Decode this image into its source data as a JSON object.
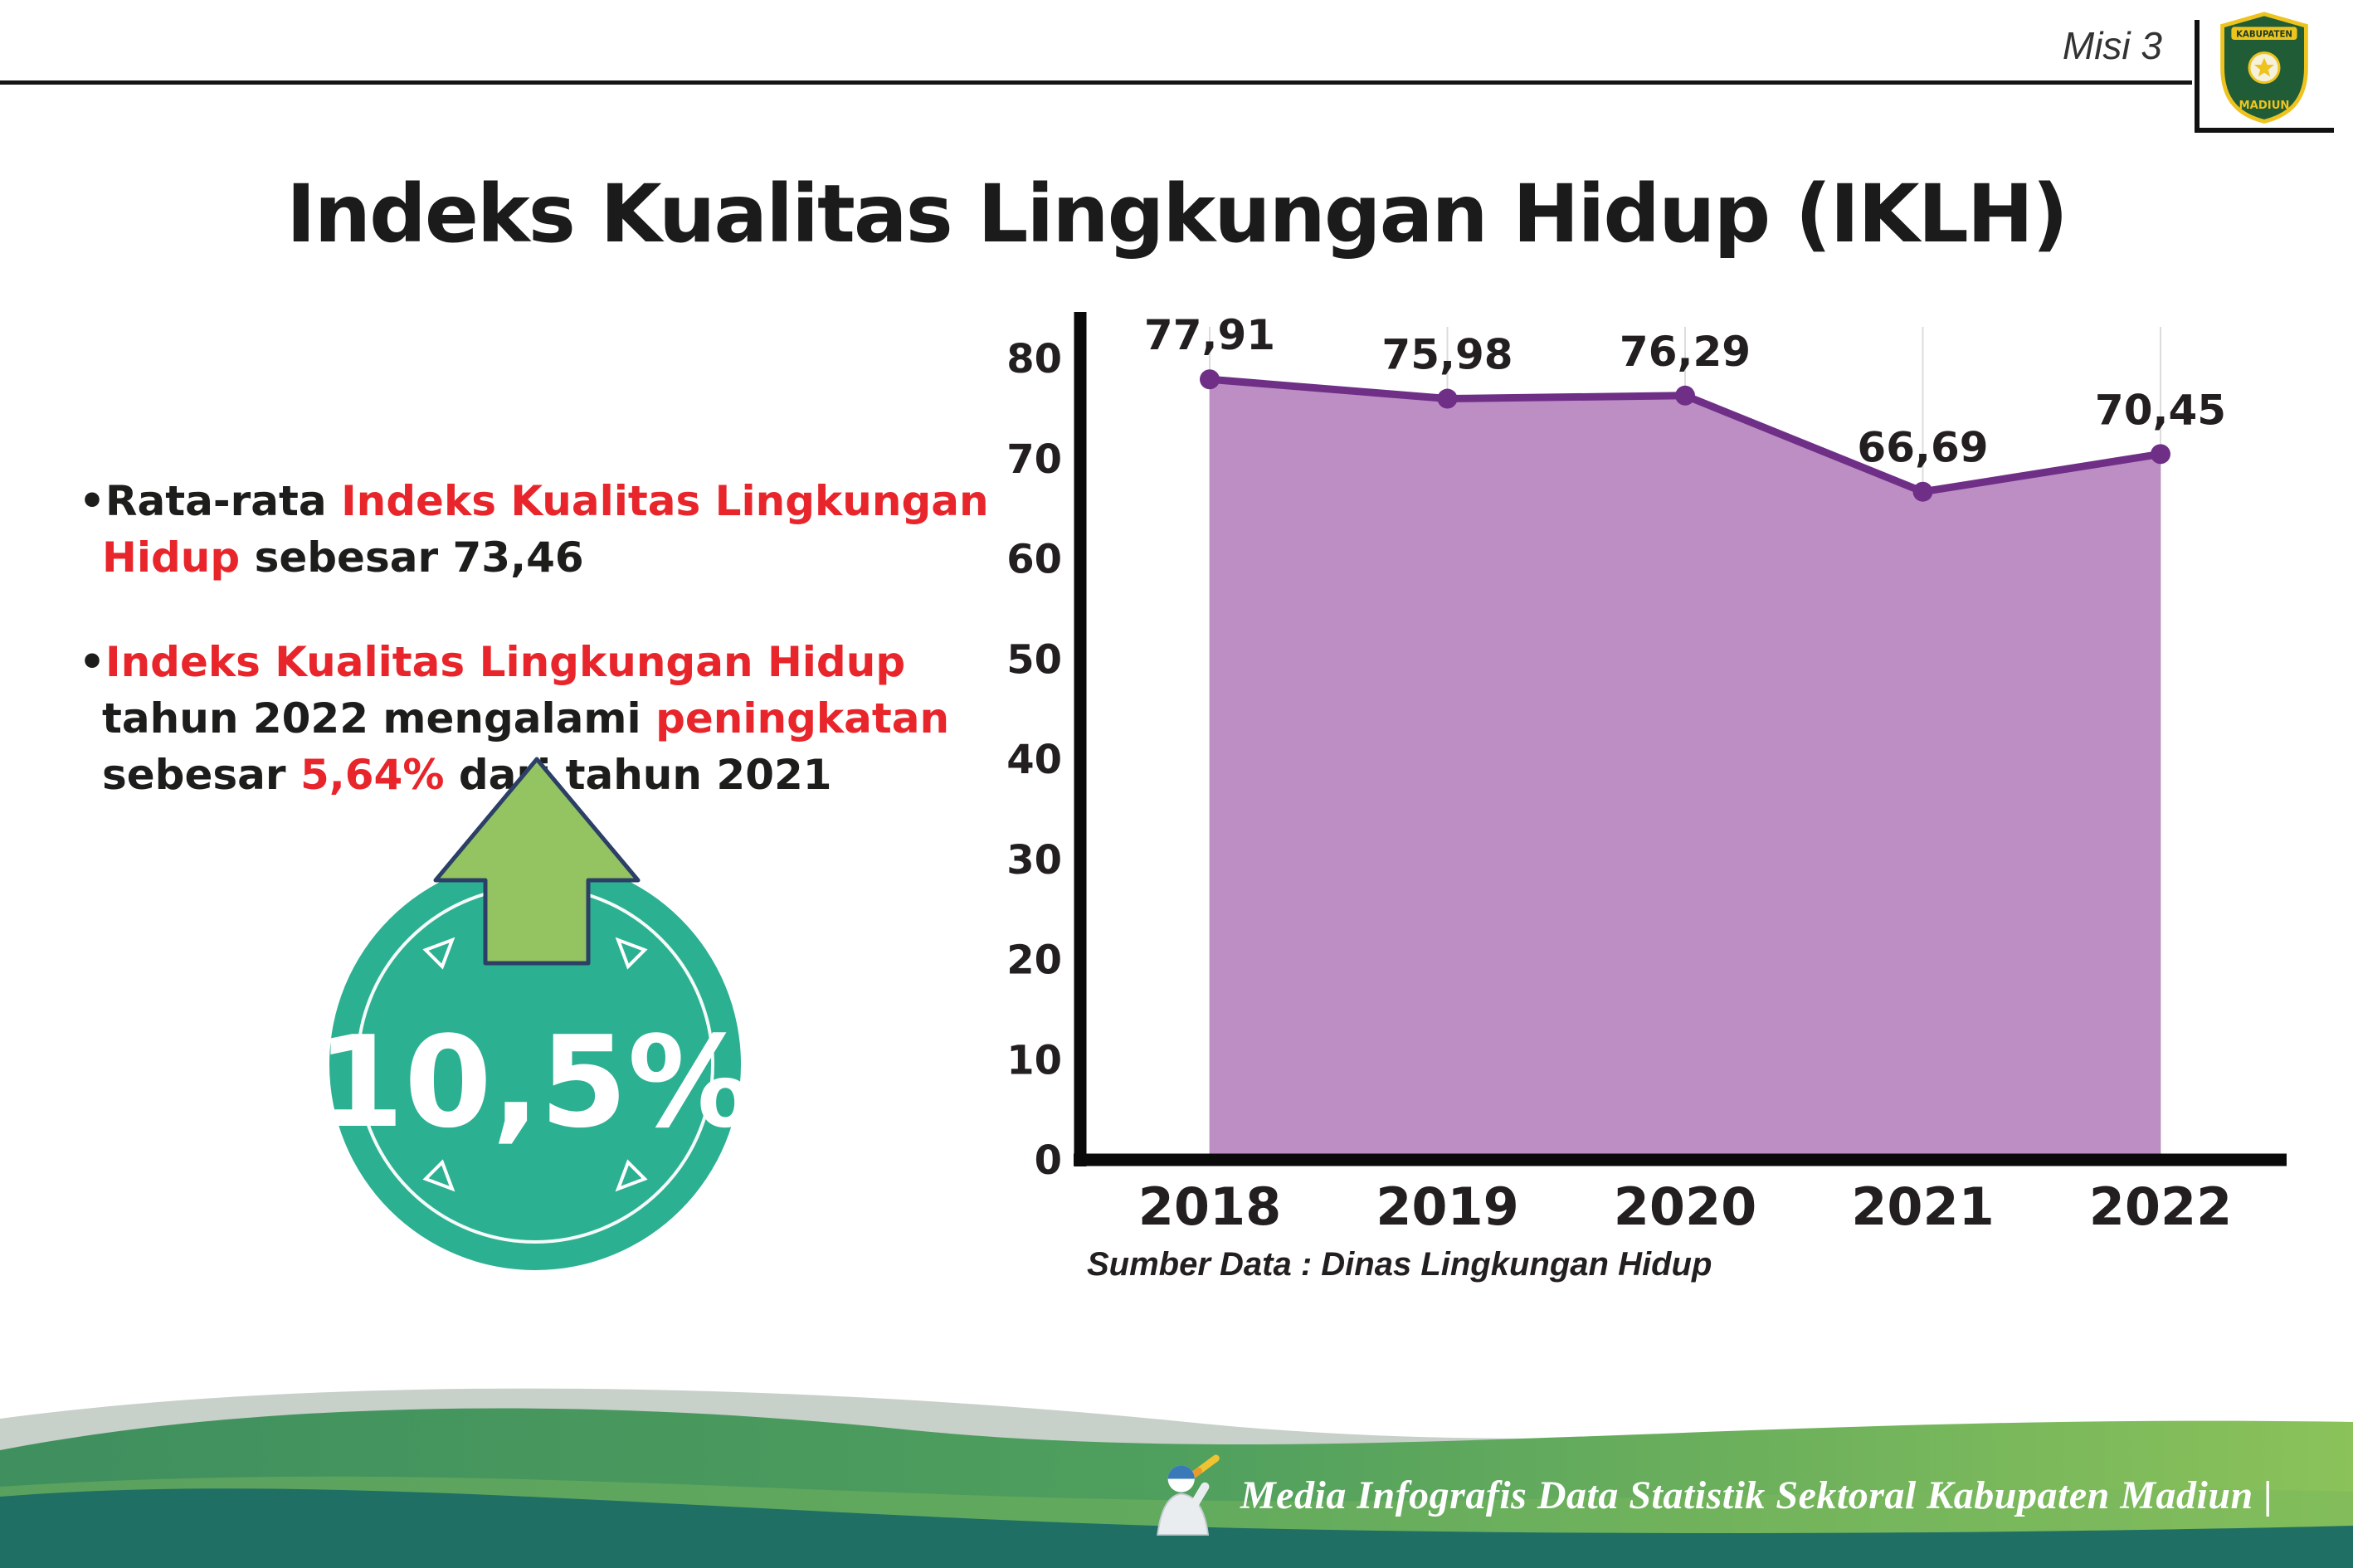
{
  "header": {
    "misi_label": "Misi 3",
    "title": "Indeks Kualitas Lingkungan Hidup (IKLH)"
  },
  "logo": {
    "line1": "KABUPATEN",
    "line2": "MADIUN"
  },
  "bullets": [
    {
      "marker": "•",
      "segments": [
        {
          "t": "Rata-rata ",
          "c": "black"
        },
        {
          "t": "Indeks Kualitas Lingkungan Hidup",
          "c": "red"
        },
        {
          "t": " sebesar 73,46",
          "c": "black"
        }
      ]
    },
    {
      "marker": "•",
      "segments": [
        {
          "t": "Indeks Kualitas Lingkungan Hidup",
          "c": "red"
        },
        {
          "t": " tahun 2022 mengalami ",
          "c": "black"
        },
        {
          "t": "peningkatan",
          "c": "red"
        },
        {
          "t": " sebesar ",
          "c": "black"
        },
        {
          "t": "5,64%",
          "c": "red"
        },
        {
          "t": " dari tahun 2021",
          "c": "black"
        }
      ]
    }
  ],
  "badge": {
    "value": "10,5%"
  },
  "chart_data": {
    "type": "area",
    "categories": [
      "2018",
      "2019",
      "2020",
      "2021",
      "2022"
    ],
    "values": [
      77.91,
      75.98,
      76.29,
      66.69,
      70.45
    ],
    "value_labels": [
      "77,91",
      "75,98",
      "76,29",
      "66,69",
      "70,45"
    ],
    "title": "Indeks Kualitas Lingkungan Hidup (IKLH)",
    "xlabel": "",
    "ylabel": "",
    "ylim": [
      0,
      80
    ],
    "yticks": [
      0,
      10,
      20,
      30,
      40,
      50,
      60,
      70,
      80
    ],
    "grid": "vertical-light",
    "legend": "none",
    "source": "Sumber Data : Dinas Lingkungan Hidup",
    "colors": {
      "area": "#bd8ec4",
      "line": "#6f2f87",
      "point": "#6f2f87",
      "label": "#231f20",
      "axis": "#0a0a0a",
      "grid": "#dcdcdc"
    }
  },
  "footer": {
    "credit": "Media Infografis Data Statistik Sektoral Kabupaten Madiun |"
  },
  "palette": {
    "red": "#e8252b",
    "teal_circle": "#2cb092",
    "arrow_green": "#94c361",
    "arrow_outline": "#2c3f66",
    "wave_gray": "#c7d0c9",
    "wave_green_left": "#3f8f5f",
    "wave_green_right": "#8bc25a",
    "wave_teal": "#1f6f64"
  }
}
